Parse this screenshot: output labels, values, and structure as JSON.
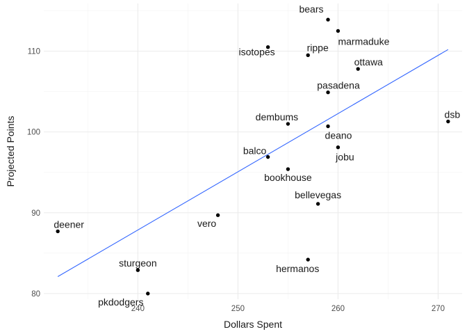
{
  "chart_data": {
    "type": "scatter",
    "xlabel": "Dollars Spent",
    "ylabel": "Projected Points",
    "xlim": [
      230.6,
      272.4
    ],
    "ylim": [
      79.3,
      115.9
    ],
    "x_ticks": [
      240,
      250,
      260,
      270
    ],
    "y_ticks": [
      80,
      90,
      100,
      110
    ],
    "grid": true,
    "trend_line": {
      "color": "#3366FF",
      "x": [
        232,
        271
      ],
      "y": [
        82.1,
        110.2
      ]
    },
    "points": [
      {
        "label": "bears",
        "x": 259,
        "y": 113.9
      },
      {
        "label": "marmaduke",
        "x": 260,
        "y": 112.5
      },
      {
        "label": "rippe",
        "x": 257,
        "y": 109.5
      },
      {
        "label": "isotopes",
        "x": 253,
        "y": 110.5
      },
      {
        "label": "ottawa",
        "x": 262,
        "y": 107.8
      },
      {
        "label": "pasadena",
        "x": 259,
        "y": 104.9
      },
      {
        "label": "dsb",
        "x": 271,
        "y": 101.3
      },
      {
        "label": "dembums",
        "x": 255,
        "y": 101.0
      },
      {
        "label": "deano",
        "x": 259,
        "y": 100.7
      },
      {
        "label": "jobu",
        "x": 260,
        "y": 98.1
      },
      {
        "label": "balco",
        "x": 253,
        "y": 96.9
      },
      {
        "label": "bookhouse",
        "x": 255,
        "y": 95.4
      },
      {
        "label": "bellevegas",
        "x": 258,
        "y": 91.1
      },
      {
        "label": "vero",
        "x": 248,
        "y": 89.7
      },
      {
        "label": "deener",
        "x": 232,
        "y": 87.7
      },
      {
        "label": "hermanos",
        "x": 257,
        "y": 84.2
      },
      {
        "label": "sturgeon",
        "x": 240,
        "y": 82.9
      },
      {
        "label": "pkdodgers",
        "x": 241,
        "y": 80.0
      }
    ]
  }
}
